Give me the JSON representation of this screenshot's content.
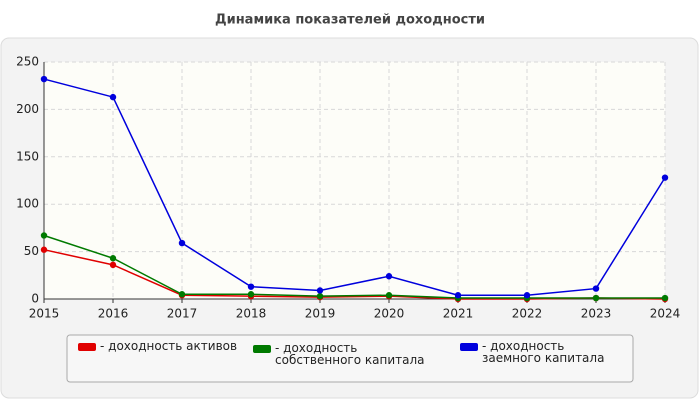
{
  "chart_data": {
    "type": "line",
    "title": "Динамика показателей доходности",
    "x": [
      2015,
      2016,
      2017,
      2018,
      2019,
      2020,
      2021,
      2022,
      2023,
      2024
    ],
    "xlim": [
      2015,
      2024
    ],
    "xticks": [
      2015,
      2016,
      2017,
      2018,
      2019,
      2020,
      2021,
      2022,
      2023,
      2024
    ],
    "ylim": [
      0,
      250
    ],
    "yticks": [
      0,
      50,
      100,
      150,
      200,
      250
    ],
    "grid": true,
    "series": [
      {
        "name": "- доходность активов",
        "color": "#e00000",
        "values": [
          52,
          36,
          4,
          3,
          2,
          3,
          0,
          0,
          1,
          0
        ]
      },
      {
        "name": "- доходность собственного капитала",
        "color": "#007a00",
        "values": [
          67,
          43,
          5,
          5,
          3,
          4,
          1,
          1,
          1,
          1
        ]
      },
      {
        "name": "- доходность заемного капитала",
        "color": "#0000dd",
        "values": [
          232,
          213,
          59,
          13,
          9,
          24,
          4,
          4,
          11,
          128
        ]
      }
    ]
  }
}
